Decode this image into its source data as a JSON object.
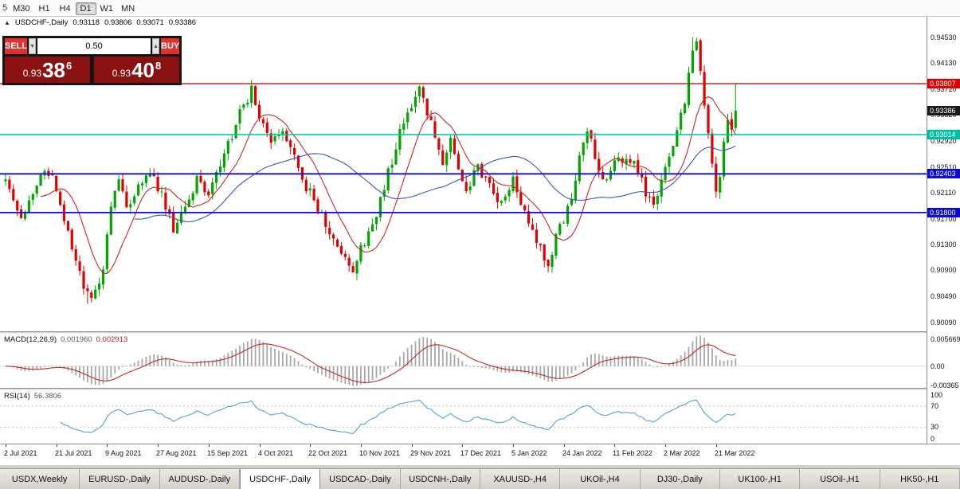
{
  "colors": {
    "bull": "#00A500",
    "bear": "#E00000",
    "ma_fast": "#C62828",
    "ma_slow": "#3A55C0",
    "macd_hist": "#A8A8A8",
    "macd_signal": "#C62828",
    "rsi_line": "#56A2CE",
    "level_dash": "#BBBBBB"
  },
  "toolbar": {
    "partial_left": "5",
    "timeframes": [
      {
        "label": "M30",
        "active": false
      },
      {
        "label": "H1",
        "active": false
      },
      {
        "label": "H4",
        "active": false
      },
      {
        "label": "D1",
        "active": true
      },
      {
        "label": "W1",
        "active": false
      },
      {
        "label": "MN",
        "active": false
      }
    ]
  },
  "chart_header": {
    "collapse_icon": "▲",
    "symbol_title": "USDCHF-,Daily",
    "open": "0.93118",
    "high": "0.93806",
    "low": "0.93071",
    "close": "0.93386"
  },
  "trade_panel": {
    "sell_label": "SELL",
    "buy_label": "BUY",
    "lot_size": "0.50",
    "dec_icon": "▼",
    "inc_icon": "▲",
    "sell_price": {
      "big_prefix": "0.93",
      "big": "38",
      "sup": "6"
    },
    "buy_price": {
      "big_prefix": "0.93",
      "big": "40",
      "sup": "8"
    }
  },
  "chart": {
    "seed": 1337,
    "candle_count": 188,
    "forced_last": {
      "open": 0.93118,
      "high": 0.93806,
      "low": 0.93071,
      "close": 0.93386
    },
    "peak": {
      "day": 176,
      "high": 0.9453
    },
    "trough": {
      "day": 21,
      "low": 0.9038
    },
    "ma_periods": {
      "fast": 10,
      "slow": 34
    },
    "price_axis": {
      "top": 0.9485,
      "bottom": 0.8995,
      "labels": [
        "0.94530",
        "0.94130",
        "0.93720",
        "0.93320",
        "0.92920",
        "0.92510",
        "0.92110",
        "0.91700",
        "0.91300",
        "0.90900",
        "0.90490",
        "0.90090"
      ]
    },
    "hlines": [
      {
        "name": "resistance-line-red",
        "price": 0.93807,
        "color": "#E00000",
        "width": 1.4,
        "draw_line": true,
        "label": "0.93807",
        "label_bg": "#E00000"
      },
      {
        "name": "current-bid",
        "price": 0.93386,
        "color": "#1A1A1A",
        "width": 1,
        "draw_line": false,
        "label": "0.93386",
        "label_bg": "#1A1A1A"
      },
      {
        "name": "support-line-teal",
        "price": 0.93014,
        "color": "#00BFA0",
        "width": 1.6,
        "draw_line": true,
        "label": "0.93014",
        "label_bg": "#00BFA0"
      },
      {
        "name": "support-line-blue-upper",
        "price": 0.92403,
        "color": "#0A0AD2",
        "width": 1.8,
        "draw_line": true,
        "label": "0.92403",
        "label_bg": "#0A0AD2"
      },
      {
        "name": "support-line-blue-lower",
        "price": 0.918,
        "color": "#0A0AD2",
        "width": 1.8,
        "draw_line": true,
        "label": "0.91800",
        "label_bg": "#0A0AD2"
      }
    ],
    "price_anchors": [
      [
        0,
        0.9238
      ],
      [
        2,
        0.9198
      ],
      [
        4,
        0.917
      ],
      [
        7,
        0.9216
      ],
      [
        10,
        0.9252
      ],
      [
        13,
        0.922
      ],
      [
        16,
        0.915
      ],
      [
        19,
        0.9082
      ],
      [
        21,
        0.9048
      ],
      [
        23,
        0.9052
      ],
      [
        25,
        0.91
      ],
      [
        27,
        0.919
      ],
      [
        29,
        0.9228
      ],
      [
        31,
        0.919
      ],
      [
        34,
        0.9216
      ],
      [
        37,
        0.9244
      ],
      [
        40,
        0.9206
      ],
      [
        43,
        0.9158
      ],
      [
        46,
        0.9188
      ],
      [
        49,
        0.9228
      ],
      [
        52,
        0.9206
      ],
      [
        55,
        0.9252
      ],
      [
        58,
        0.93
      ],
      [
        61,
        0.935
      ],
      [
        63,
        0.9368
      ],
      [
        65,
        0.9336
      ],
      [
        68,
        0.9298
      ],
      [
        71,
        0.9312
      ],
      [
        74,
        0.9266
      ],
      [
        77,
        0.9222
      ],
      [
        80,
        0.9188
      ],
      [
        83,
        0.9148
      ],
      [
        86,
        0.9112
      ],
      [
        89,
        0.9094
      ],
      [
        92,
        0.9134
      ],
      [
        95,
        0.9172
      ],
      [
        98,
        0.9242
      ],
      [
        101,
        0.9308
      ],
      [
        104,
        0.9352
      ],
      [
        106,
        0.937
      ],
      [
        109,
        0.9326
      ],
      [
        112,
        0.9252
      ],
      [
        114,
        0.9288
      ],
      [
        116,
        0.9238
      ],
      [
        118,
        0.9212
      ],
      [
        121,
        0.9248
      ],
      [
        124,
        0.9222
      ],
      [
        127,
        0.9194
      ],
      [
        130,
        0.9228
      ],
      [
        133,
        0.9176
      ],
      [
        136,
        0.9132
      ],
      [
        139,
        0.9098
      ],
      [
        142,
        0.9158
      ],
      [
        145,
        0.9206
      ],
      [
        147,
        0.9262
      ],
      [
        149,
        0.9316
      ],
      [
        151,
        0.9258
      ],
      [
        153,
        0.9228
      ],
      [
        156,
        0.9258
      ],
      [
        159,
        0.9272
      ],
      [
        162,
        0.9242
      ],
      [
        164,
        0.9212
      ],
      [
        166,
        0.9184
      ],
      [
        168,
        0.9228
      ],
      [
        170,
        0.9262
      ],
      [
        172,
        0.9306
      ],
      [
        174,
        0.9356
      ],
      [
        175,
        0.9396
      ],
      [
        176,
        0.9442
      ],
      [
        177,
        0.9446
      ],
      [
        178,
        0.94
      ],
      [
        179,
        0.9352
      ],
      [
        180,
        0.9308
      ],
      [
        181,
        0.9252
      ],
      [
        182,
        0.9206
      ],
      [
        183,
        0.924
      ],
      [
        184,
        0.9284
      ],
      [
        185,
        0.9316
      ],
      [
        186,
        0.93
      ],
      [
        187,
        0.93386
      ]
    ]
  },
  "macd_panel": {
    "label": "MACD(12,26,9)",
    "value_main": "0.001960",
    "value_signal": "0.002913",
    "axis_top": "0.005669",
    "axis_zero": "0.00",
    "axis_bottom": "-0.00365",
    "scale_max": 0.005669,
    "scale_min": -0.00365
  },
  "rsi_panel": {
    "label": "RSI(14)",
    "value": "56.3806",
    "axis_labels": [
      "100",
      "70",
      "30",
      "0"
    ],
    "levels": [
      70,
      30
    ]
  },
  "time_axis": {
    "labels": [
      {
        "day": 0,
        "text": "2 Jul 2021"
      },
      {
        "day": 13,
        "text": "21 Jul 2021"
      },
      {
        "day": 26,
        "text": "9 Aug 2021"
      },
      {
        "day": 39,
        "text": "27 Aug 2021"
      },
      {
        "day": 52,
        "text": "15 Sep 2021"
      },
      {
        "day": 65,
        "text": "4 Oct 2021"
      },
      {
        "day": 78,
        "text": "22 Oct 2021"
      },
      {
        "day": 91,
        "text": "10 Nov 2021"
      },
      {
        "day": 104,
        "text": "29 Nov 2021"
      },
      {
        "day": 117,
        "text": "17 Dec 2021"
      },
      {
        "day": 130,
        "text": "5 Jan 2022"
      },
      {
        "day": 143,
        "text": "24 Jan 2022"
      },
      {
        "day": 156,
        "text": "11 Feb 2022"
      },
      {
        "day": 169,
        "text": "2 Mar 2022"
      },
      {
        "day": 182,
        "text": "21 Mar 2022"
      }
    ]
  },
  "tabs": [
    {
      "label": "USDX,Weekly",
      "active": false
    },
    {
      "label": "EURUSD-,Daily",
      "active": false
    },
    {
      "label": "AUDUSD-,Daily",
      "active": false
    },
    {
      "label": "USDCHF-,Daily",
      "active": true
    },
    {
      "label": "USDCAD-,Daily",
      "active": false
    },
    {
      "label": "USDCNH-,Daily",
      "active": false
    },
    {
      "label": "XAUUSD-,H4",
      "active": false
    },
    {
      "label": "UKOil-,H4",
      "active": false
    },
    {
      "label": "DJ30-,Daily",
      "active": false
    },
    {
      "label": "UK100-,H1",
      "active": false
    },
    {
      "label": "USOil-,H1",
      "active": false
    },
    {
      "label": "HK50-,H1",
      "active": false
    }
  ]
}
